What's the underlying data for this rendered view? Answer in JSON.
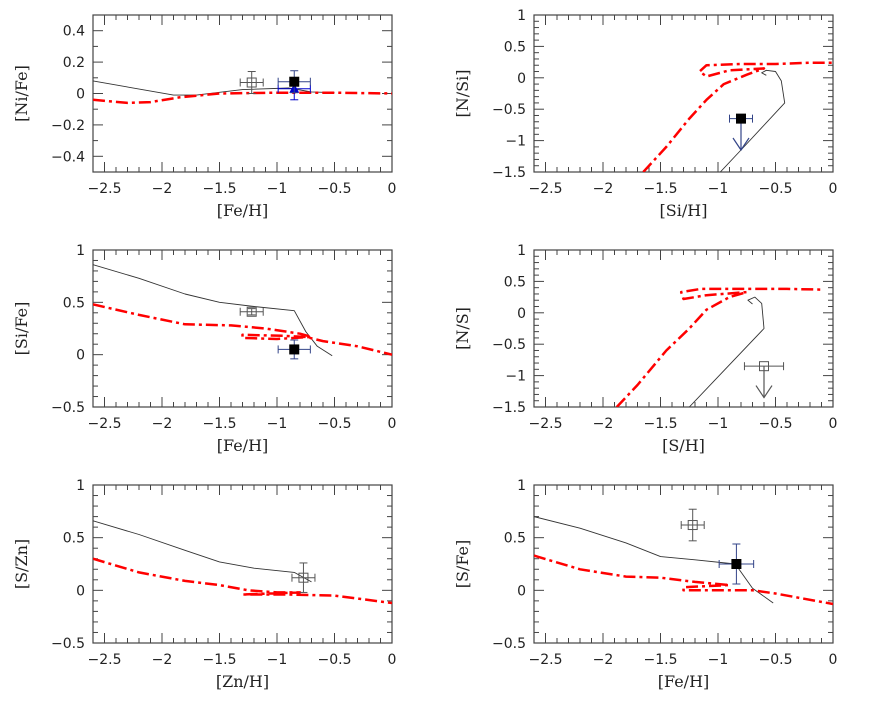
{
  "chart_data": [
    {
      "type": "line",
      "xlabel": "[Fe/H]",
      "ylabel": "[Ni/Fe]",
      "xlim": [
        -2.6,
        0
      ],
      "ylim": [
        -0.5,
        0.5
      ],
      "xticks": [
        -2.5,
        -2,
        -1.5,
        -1,
        -0.5,
        0
      ],
      "xtick_labels": [
        "−2.5",
        "−2",
        "−1.5",
        "−1",
        "−0.5",
        "0"
      ],
      "yticks": [
        -0.4,
        -0.2,
        0,
        0.2,
        0.4
      ],
      "ytick_labels": [
        "−0.4",
        "−0.2",
        "0",
        "0.2",
        "0.4"
      ],
      "ymajor": 0.2,
      "yminor": 0.1,
      "xminor": 0.1,
      "series": [
        {
          "style": "solid",
          "color": "#333333",
          "points": [
            [
              -2.6,
              0.08
            ],
            [
              -1.9,
              -0.01
            ],
            [
              -1.7,
              -0.01
            ],
            [
              -1.3,
              0.025
            ],
            [
              -0.9,
              0.035
            ],
            [
              -0.7,
              0.01
            ],
            [
              -0.5,
              0.005
            ]
          ]
        },
        {
          "style": "dashdot",
          "color": "#ff0000",
          "points": [
            [
              -2.6,
              -0.04
            ],
            [
              -2.3,
              -0.06
            ],
            [
              -2.1,
              -0.055
            ],
            [
              -1.85,
              -0.025
            ],
            [
              -1.5,
              0
            ],
            [
              -1.0,
              0.005
            ],
            [
              -0.5,
              0.005
            ],
            [
              0,
              0
            ]
          ]
        }
      ],
      "observations": [
        {
          "marker": "open-square",
          "color": "#555555",
          "x": -1.22,
          "y": 0.07,
          "xerr": 0.1,
          "yerr": 0.07
        },
        {
          "marker": "filled-triangle",
          "color": "#0000cc",
          "x": -0.85,
          "y": 0.03,
          "xerr": 0.14,
          "yerr": 0.07
        },
        {
          "marker": "filled-square",
          "color": "#000000",
          "x": -0.85,
          "y": 0.075,
          "xerr": 0.14,
          "yerr": 0.07
        }
      ]
    },
    {
      "type": "line",
      "xlabel": "[Si/H]",
      "ylabel": "[N/Si]",
      "xlim": [
        -2.6,
        0
      ],
      "ylim": [
        -1.5,
        1
      ],
      "xticks": [
        -2.5,
        -2,
        -1.5,
        -1,
        -0.5,
        0
      ],
      "xtick_labels": [
        "−2.5",
        "−2",
        "−1.5",
        "−1",
        "−0.5",
        "0"
      ],
      "yticks": [
        -1.5,
        -1,
        -0.5,
        0,
        0.5,
        1
      ],
      "ytick_labels": [
        "−1.5",
        "−1",
        "−0.5",
        "0",
        "0.5",
        "1"
      ],
      "ymajor": 0.5,
      "yminor": 0.1,
      "xminor": 0.1,
      "series": [
        {
          "style": "solid",
          "color": "#333333",
          "points": [
            [
              -0.98,
              -1.5
            ],
            [
              -0.8,
              -1.15
            ],
            [
              -0.42,
              -0.4
            ],
            [
              -0.45,
              -0.05
            ],
            [
              -0.5,
              0.1
            ],
            [
              -0.58,
              0.12
            ],
            [
              -0.62,
              0.08
            ],
            [
              -0.58,
              0.04
            ]
          ]
        },
        {
          "style": "dashdot",
          "color": "#ff0000",
          "points": [
            [
              -1.65,
              -1.5
            ],
            [
              -1.45,
              -1.1
            ],
            [
              -1.25,
              -0.65
            ],
            [
              -1.1,
              -0.35
            ],
            [
              -0.95,
              -0.1
            ],
            [
              -0.75,
              0.05
            ],
            [
              -0.6,
              0.15
            ],
            [
              -0.9,
              0.12
            ],
            [
              -1.1,
              0.02
            ],
            [
              -1.16,
              0.1
            ],
            [
              -1.1,
              0.2
            ],
            [
              -0.8,
              0.22
            ],
            [
              -0.5,
              0.22
            ],
            [
              -0.2,
              0.24
            ],
            [
              0,
              0.24
            ]
          ]
        }
      ],
      "observations": [
        {
          "marker": "filled-square",
          "color": "#000000",
          "errcolor": "#334488",
          "x": -0.8,
          "y": -0.65,
          "xerr": 0.1,
          "upper_limit_to": -1.15
        }
      ]
    },
    {
      "type": "line",
      "xlabel": "[Fe/H]",
      "ylabel": "[Si/Fe]",
      "xlim": [
        -2.6,
        0
      ],
      "ylim": [
        -0.5,
        1
      ],
      "xticks": [
        -2.5,
        -2,
        -1.5,
        -1,
        -0.5,
        0
      ],
      "xtick_labels": [
        "−2.5",
        "−2",
        "−1.5",
        "−1",
        "−0.5",
        "0"
      ],
      "yticks": [
        -0.5,
        0,
        0.5,
        1
      ],
      "ytick_labels": [
        "−0.5",
        "0",
        "0.5",
        "1"
      ],
      "ymajor": 0.5,
      "yminor": 0.1,
      "xminor": 0.1,
      "series": [
        {
          "style": "solid",
          "color": "#333333",
          "points": [
            [
              -2.6,
              0.86
            ],
            [
              -2.2,
              0.73
            ],
            [
              -1.8,
              0.58
            ],
            [
              -1.5,
              0.5
            ],
            [
              -1.2,
              0.46
            ],
            [
              -0.85,
              0.42
            ],
            [
              -0.75,
              0.22
            ],
            [
              -0.65,
              0.08
            ],
            [
              -0.52,
              -0.01
            ]
          ]
        },
        {
          "style": "dashdot",
          "color": "#ff0000",
          "points": [
            [
              -2.6,
              0.48
            ],
            [
              -2.2,
              0.38
            ],
            [
              -1.8,
              0.29
            ],
            [
              -1.4,
              0.28
            ],
            [
              -1.1,
              0.25
            ],
            [
              -0.8,
              0.2
            ],
            [
              -0.7,
              0.17
            ],
            [
              -1.0,
              0.15
            ],
            [
              -1.3,
              0.16
            ],
            [
              -1.3,
              0.19
            ],
            [
              -0.95,
              0.18
            ],
            [
              -0.75,
              0.17
            ],
            [
              -0.6,
              0.13
            ],
            [
              -0.3,
              0.08
            ],
            [
              0,
              0
            ]
          ]
        }
      ],
      "observations": [
        {
          "marker": "open-square",
          "color": "#555555",
          "x": -1.22,
          "y": 0.41,
          "xerr": 0.1,
          "yerr": 0.03
        },
        {
          "marker": "filled-square",
          "color": "#000000",
          "errcolor": "#334488",
          "x": -0.85,
          "y": 0.05,
          "xerr": 0.14,
          "yerr": 0.09
        }
      ]
    },
    {
      "type": "line",
      "xlabel": "[S/H]",
      "ylabel": "[N/S]",
      "xlim": [
        -2.6,
        0
      ],
      "ylim": [
        -1.5,
        1
      ],
      "xticks": [
        -2.5,
        -2,
        -1.5,
        -1,
        -0.5,
        0
      ],
      "xtick_labels": [
        "−2.5",
        "−2",
        "−1.5",
        "−1",
        "−0.5",
        "0"
      ],
      "yticks": [
        -1.5,
        -1,
        -0.5,
        0,
        0.5,
        1
      ],
      "ytick_labels": [
        "−1.5",
        "−1",
        "−0.5",
        "0",
        "0.5",
        "1"
      ],
      "ymajor": 0.5,
      "yminor": 0.1,
      "xminor": 0.1,
      "series": [
        {
          "style": "solid",
          "color": "#333333",
          "points": [
            [
              -1.25,
              -1.5
            ],
            [
              -0.6,
              -0.25
            ],
            [
              -0.62,
              0.15
            ],
            [
              -0.68,
              0.25
            ],
            [
              -0.74,
              0.2
            ],
            [
              -0.7,
              0.14
            ]
          ]
        },
        {
          "style": "dashdot",
          "color": "#ff0000",
          "points": [
            [
              -1.88,
              -1.5
            ],
            [
              -1.7,
              -1.15
            ],
            [
              -1.45,
              -0.6
            ],
            [
              -1.25,
              -0.25
            ],
            [
              -1.1,
              0.05
            ],
            [
              -0.9,
              0.25
            ],
            [
              -0.75,
              0.33
            ],
            [
              -1.1,
              0.28
            ],
            [
              -1.3,
              0.22
            ],
            [
              -1.32,
              0.33
            ],
            [
              -1.15,
              0.38
            ],
            [
              -0.7,
              0.38
            ],
            [
              -0.4,
              0.38
            ],
            [
              -0.1,
              0.37
            ]
          ]
        }
      ],
      "observations": [
        {
          "marker": "open-square",
          "color": "#555555",
          "x": -0.6,
          "y": -0.85,
          "xerr": 0.17,
          "upper_limit_to": -1.35
        }
      ]
    },
    {
      "type": "line",
      "xlabel": "[Zn/H]",
      "ylabel": "[S/Zn]",
      "xlim": [
        -2.6,
        0
      ],
      "ylim": [
        -0.5,
        1
      ],
      "xticks": [
        -2.5,
        -2,
        -1.5,
        -1,
        -0.5,
        0
      ],
      "xtick_labels": [
        "−2.5",
        "−2",
        "−1.5",
        "−1",
        "−0.5",
        "0"
      ],
      "yticks": [
        -0.5,
        0,
        0.5,
        1
      ],
      "ytick_labels": [
        "−0.5",
        "0",
        "0.5",
        "1"
      ],
      "ymajor": 0.5,
      "yminor": 0.1,
      "xminor": 0.1,
      "series": [
        {
          "style": "solid",
          "color": "#333333",
          "points": [
            [
              -2.6,
              0.66
            ],
            [
              -2.2,
              0.53
            ],
            [
              -1.8,
              0.38
            ],
            [
              -1.5,
              0.27
            ],
            [
              -1.2,
              0.21
            ],
            [
              -0.85,
              0.17
            ],
            [
              -0.7,
              0.08
            ]
          ]
        },
        {
          "style": "dashdot",
          "color": "#ff0000",
          "points": [
            [
              -2.6,
              0.3
            ],
            [
              -2.2,
              0.17
            ],
            [
              -1.8,
              0.09
            ],
            [
              -1.5,
              0.05
            ],
            [
              -1.25,
              0.0
            ],
            [
              -1.0,
              -0.02
            ],
            [
              -0.8,
              -0.02
            ],
            [
              -1.3,
              -0.04
            ],
            [
              -0.9,
              -0.04
            ],
            [
              -0.5,
              -0.05
            ],
            [
              0,
              -0.12
            ]
          ]
        }
      ],
      "observations": [
        {
          "marker": "open-square",
          "color": "#555555",
          "x": -0.77,
          "y": 0.12,
          "xerr": 0.1,
          "yerr": 0.14
        }
      ]
    },
    {
      "type": "line",
      "xlabel": "[Fe/H]",
      "ylabel": "[S/Fe]",
      "xlim": [
        -2.6,
        0
      ],
      "ylim": [
        -0.5,
        1
      ],
      "xticks": [
        -2.5,
        -2,
        -1.5,
        -1,
        -0.5,
        0
      ],
      "xtick_labels": [
        "−2.5",
        "−2",
        "−1.5",
        "−1",
        "−0.5",
        "0"
      ],
      "yticks": [
        -0.5,
        0,
        0.5,
        1
      ],
      "ytick_labels": [
        "−0.5",
        "0",
        "0.5",
        "1"
      ],
      "ymajor": 0.5,
      "yminor": 0.1,
      "xminor": 0.1,
      "series": [
        {
          "style": "solid",
          "color": "#333333",
          "points": [
            [
              -2.6,
              0.7
            ],
            [
              -2.2,
              0.59
            ],
            [
              -1.8,
              0.45
            ],
            [
              -1.5,
              0.32
            ],
            [
              -1.2,
              0.29
            ],
            [
              -0.85,
              0.25
            ],
            [
              -0.7,
              0.02
            ],
            [
              -0.52,
              -0.12
            ]
          ]
        },
        {
          "style": "dashdot",
          "color": "#ff0000",
          "points": [
            [
              -2.6,
              0.33
            ],
            [
              -2.2,
              0.2
            ],
            [
              -1.8,
              0.13
            ],
            [
              -1.5,
              0.12
            ],
            [
              -1.2,
              0.08
            ],
            [
              -0.9,
              0.05
            ],
            [
              -1.3,
              0.03
            ],
            [
              -1.3,
              0.0
            ],
            [
              -0.7,
              0.0
            ],
            [
              -0.5,
              -0.03
            ],
            [
              0,
              -0.13
            ]
          ]
        }
      ],
      "observations": [
        {
          "marker": "open-square",
          "color": "#555555",
          "x": -1.22,
          "y": 0.62,
          "xerr": 0.1,
          "yerr": 0.15
        },
        {
          "marker": "filled-square",
          "color": "#000000",
          "errcolor": "#334488",
          "x": -0.84,
          "y": 0.25,
          "xerr": 0.15,
          "yerr": 0.19
        }
      ]
    }
  ]
}
